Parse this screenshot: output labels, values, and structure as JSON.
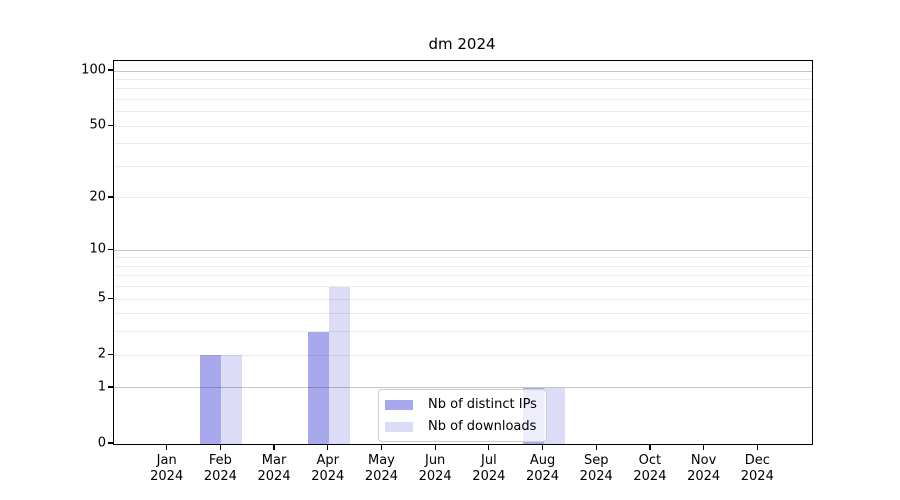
{
  "figure": {
    "background": "#ffffff"
  },
  "chart_data": {
    "type": "bar",
    "title": "dm 2024",
    "categories": [
      "Jan",
      "Feb",
      "Mar",
      "Apr",
      "May",
      "Jun",
      "Jul",
      "Aug",
      "Sep",
      "Oct",
      "Nov",
      "Dec"
    ],
    "x_year_label": "2024",
    "series": [
      {
        "name": "Nb of distinct IPs",
        "color": "#a8a8ec",
        "values": [
          0,
          2,
          0,
          3,
          0,
          0,
          0,
          1,
          0,
          0,
          0,
          0
        ]
      },
      {
        "name": "Nb of downloads",
        "color": "#dcdcf7",
        "values": [
          0,
          2,
          0,
          6,
          0,
          0,
          0,
          1,
          0,
          0,
          0,
          0
        ]
      }
    ],
    "xlabel": "",
    "ylabel": "",
    "y_axis": {
      "scale": "log1p",
      "tick_values": [
        0,
        1,
        2,
        5,
        10,
        20,
        50,
        100
      ],
      "tick_labels": [
        "0",
        "1",
        "2",
        "5",
        "10",
        "20",
        "50",
        "100"
      ],
      "major_gridline_values": [
        1,
        10,
        100
      ],
      "minor_gridline_values": [
        2,
        3,
        4,
        5,
        6,
        7,
        8,
        9,
        20,
        30,
        40,
        50,
        60,
        70,
        80,
        90
      ],
      "range_top_value": 113
    },
    "grid": true,
    "legend_position": "lower center-right, inside axes"
  },
  "colors": {
    "major_grid": "#c7c7c7",
    "minor_grid": "#ececec",
    "axis_frame": "#000000",
    "text": "#000000"
  }
}
